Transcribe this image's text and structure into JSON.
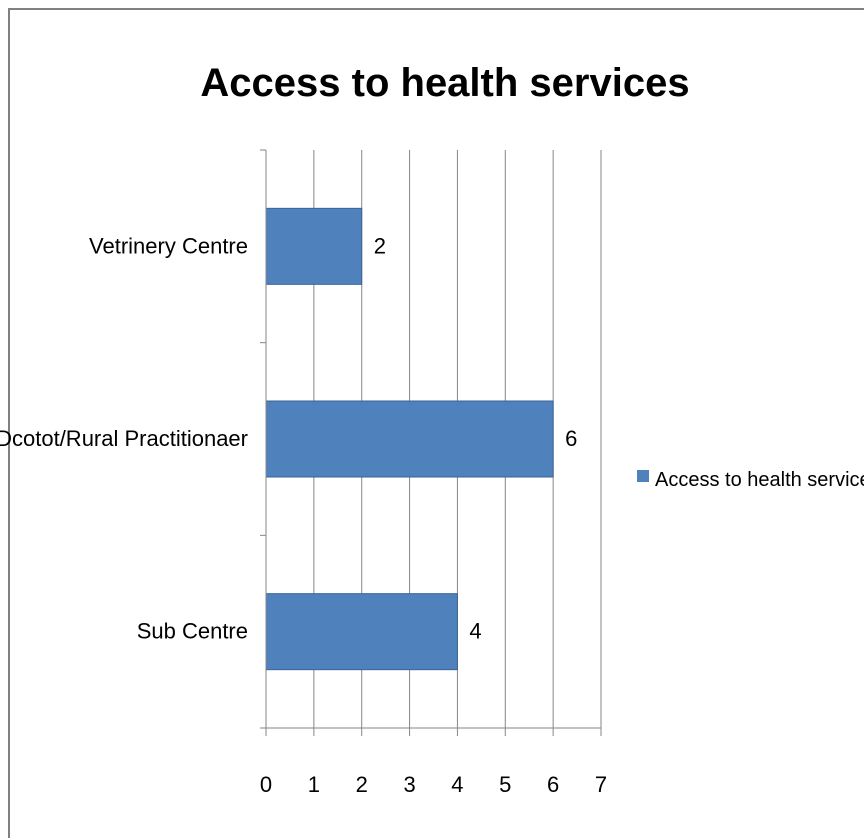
{
  "chart_data": {
    "type": "bar",
    "orientation": "horizontal",
    "title": "Access to health services",
    "categories": [
      "Vetrinery Centre",
      "Dcotot/Rural Practitionaer",
      "Sub Centre"
    ],
    "series": [
      {
        "name": "Access to health services",
        "values": [
          2,
          6,
          4
        ]
      }
    ],
    "xlim": [
      0,
      7
    ],
    "xticks": [
      "0",
      "1",
      "2",
      "3",
      "4",
      "5",
      "6",
      "7"
    ],
    "grid": "vertical",
    "legend_position": "right",
    "data_labels": true,
    "series_color": "#4f81bd"
  }
}
